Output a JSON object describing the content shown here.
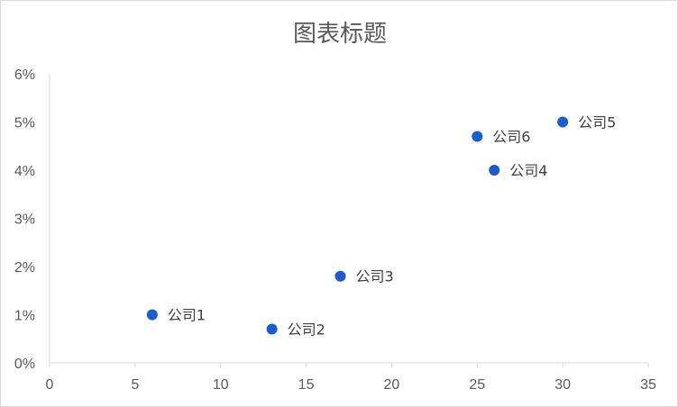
{
  "chart_data": {
    "type": "scatter",
    "title": "图表标题",
    "xlabel": "",
    "ylabel": "",
    "xlim": [
      0,
      35
    ],
    "ylim": [
      0,
      0.06
    ],
    "x_ticks": [
      "0",
      "5",
      "10",
      "15",
      "20",
      "25",
      "30",
      "35"
    ],
    "y_ticks": [
      "0%",
      "1%",
      "2%",
      "3%",
      "4%",
      "5%",
      "6%"
    ],
    "grid": false,
    "legend": "none",
    "marker_color": "#1a5ccf",
    "points": [
      {
        "label": "公司1",
        "x": 6,
        "y": 0.01
      },
      {
        "label": "公司2",
        "x": 13,
        "y": 0.007
      },
      {
        "label": "公司3",
        "x": 17,
        "y": 0.018
      },
      {
        "label": "公司4",
        "x": 26,
        "y": 0.04
      },
      {
        "label": "公司5",
        "x": 30,
        "y": 0.05
      },
      {
        "label": "公司6",
        "x": 25,
        "y": 0.047
      }
    ]
  }
}
